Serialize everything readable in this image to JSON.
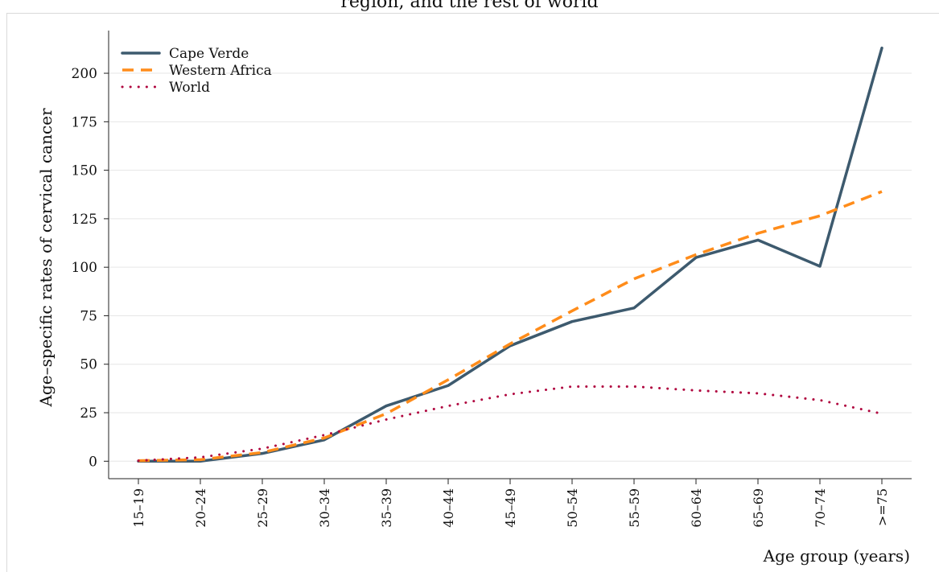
{
  "chart_data": {
    "type": "line",
    "title": "region, and the rest of world",
    "xlabel": "Age group (years)",
    "ylabel": "Age–specific rates of cervical cancer",
    "categories": [
      "15–19",
      "20–24",
      "25–29",
      "30–34",
      "35–39",
      "40–44",
      "45–49",
      "50–54",
      "55–59",
      "60–64",
      "65–69",
      "70–74",
      ">=75"
    ],
    "yticks": [
      0,
      25,
      50,
      75,
      100,
      125,
      150,
      175,
      200
    ],
    "ylim": [
      -9,
      222
    ],
    "grid": true,
    "legend_position": "top-left",
    "series": [
      {
        "name": "Cape Verde",
        "color": "#3d5a6e",
        "style": "solid",
        "values": [
          0,
          0,
          4,
          11,
          28.5,
          39,
          59.5,
          72,
          79,
          105,
          114,
          100.5,
          213
        ]
      },
      {
        "name": "Western Africa",
        "color": "#ff8c1a",
        "style": "dashed",
        "values": [
          0.3,
          0.8,
          4.5,
          12,
          24.5,
          42,
          60.5,
          77.5,
          94,
          106.5,
          117.5,
          126.5,
          139
        ]
      },
      {
        "name": "World",
        "color": "#b0063f",
        "style": "dotted",
        "values": [
          0.3,
          2,
          6.5,
          13.5,
          21.5,
          28.5,
          34.5,
          38.5,
          38.5,
          36.5,
          35,
          31.5,
          24.5
        ]
      }
    ]
  }
}
